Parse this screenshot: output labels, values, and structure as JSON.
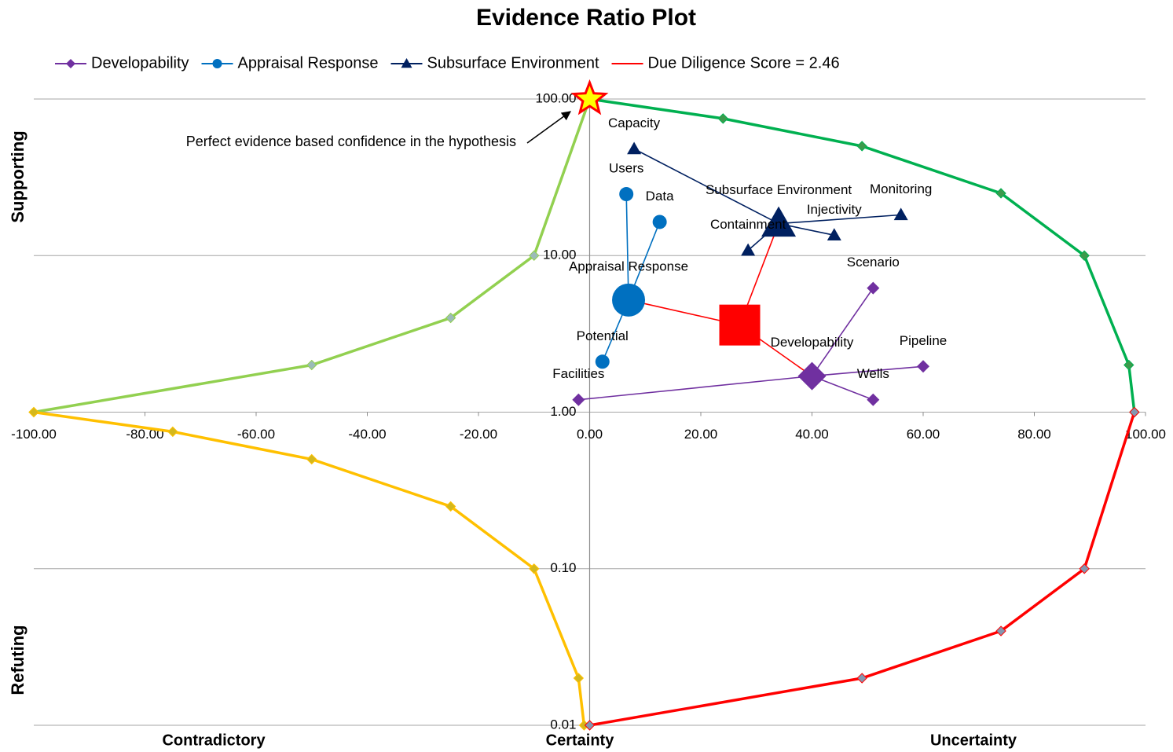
{
  "chart_data": {
    "type": "scatter",
    "title": "Evidence Ratio Plot",
    "xlim": [
      -100,
      100
    ],
    "xticks": [
      {
        "value": -100,
        "label": "-100.00"
      },
      {
        "value": -80,
        "label": "-80.00"
      },
      {
        "value": -60,
        "label": "-60.00"
      },
      {
        "value": -40,
        "label": "-40.00"
      },
      {
        "value": -20,
        "label": "-20.00"
      },
      {
        "value": 0,
        "label": "0.00"
      },
      {
        "value": 20,
        "label": "20.00"
      },
      {
        "value": 40,
        "label": "40.00"
      },
      {
        "value": 60,
        "label": "60.00"
      },
      {
        "value": 80,
        "label": "80.00"
      },
      {
        "value": 100,
        "label": "100.00"
      }
    ],
    "ylim": [
      0.01,
      100
    ],
    "yticks": [
      {
        "value": 0.01,
        "label": "0.01"
      },
      {
        "value": 0.1,
        "label": "0.10"
      },
      {
        "value": 1,
        "label": "1.00"
      },
      {
        "value": 10,
        "label": "10.00"
      },
      {
        "value": 100,
        "label": "100.00"
      }
    ],
    "y_log": true,
    "grid": true,
    "y_axis_labels": [
      "Supporting",
      "Refuting"
    ],
    "x_axis_labels": [
      "Contradictory",
      "Certainty",
      "Uncertainty"
    ],
    "highlight": {
      "x": 0,
      "y": 100,
      "color": "#ffff00",
      "edge": "#ff0000"
    },
    "annotation": "Perfect evidence based confidence in the hypothesis",
    "series": [
      {
        "style": "boundary",
        "color": "#92d050",
        "marker_color": "#9bbbb8",
        "x": [
          -100,
          -50,
          -25,
          -10,
          0
        ],
        "values": [
          1,
          2,
          4,
          10,
          100
        ]
      },
      {
        "style": "boundary",
        "color": "#00b050",
        "marker_color": "#3c9a4c",
        "x": [
          0,
          24,
          49,
          74,
          89,
          97,
          98
        ],
        "values": [
          100,
          75,
          50,
          25,
          10,
          2,
          1
        ]
      },
      {
        "style": "boundary",
        "color": "#ffc000",
        "marker_color": "#d4b81c",
        "x": [
          -100,
          -75,
          -50,
          -25,
          -10,
          -2,
          -1
        ],
        "values": [
          1,
          0.75,
          0.5,
          0.25,
          0.1,
          0.02,
          0.01
        ]
      },
      {
        "style": "boundary",
        "color": "#ff0000",
        "marker_color": "#8497b0",
        "x": [
          0,
          49,
          74,
          89,
          98
        ],
        "values": [
          0.01,
          0.02,
          0.04,
          0.1,
          1
        ]
      },
      {
        "name": "Developability",
        "style": "hub",
        "marker": "diamond",
        "color": "#7030a0",
        "point_labels": [
          "Developability",
          "Facilities",
          "Scenario",
          "Pipeline",
          "Wells"
        ],
        "x": [
          40,
          -2,
          51,
          60,
          51
        ],
        "values": [
          1.7,
          1.2,
          6.2,
          1.96,
          1.2
        ]
      },
      {
        "name": "Appraisal Response",
        "style": "hub",
        "marker": "circle",
        "color": "#0070c0",
        "point_labels": [
          "Appraisal Response",
          "Users",
          "Data",
          "Potential"
        ],
        "x": [
          7,
          6.6,
          12.6,
          2.3
        ],
        "values": [
          5.2,
          24.7,
          16.4,
          2.1
        ]
      },
      {
        "name": "Subsurface Environment",
        "style": "hub",
        "marker": "triangle",
        "color": "#002060",
        "point_labels": [
          "Subsurface Environment",
          "Capacity",
          "Monitoring",
          "Injectivity",
          "Containment"
        ],
        "x": [
          34,
          8,
          56,
          44,
          28.5
        ],
        "values": [
          16,
          48,
          18.2,
          13.5,
          10.8
        ]
      },
      {
        "name": "Due Diligence Score = 2.46",
        "style": "hub",
        "marker": "square",
        "color": "#ff0000",
        "hub_only": true,
        "x": [
          27,
          7,
          34,
          40
        ],
        "values": [
          3.6,
          5.2,
          16,
          1.7
        ]
      }
    ]
  }
}
